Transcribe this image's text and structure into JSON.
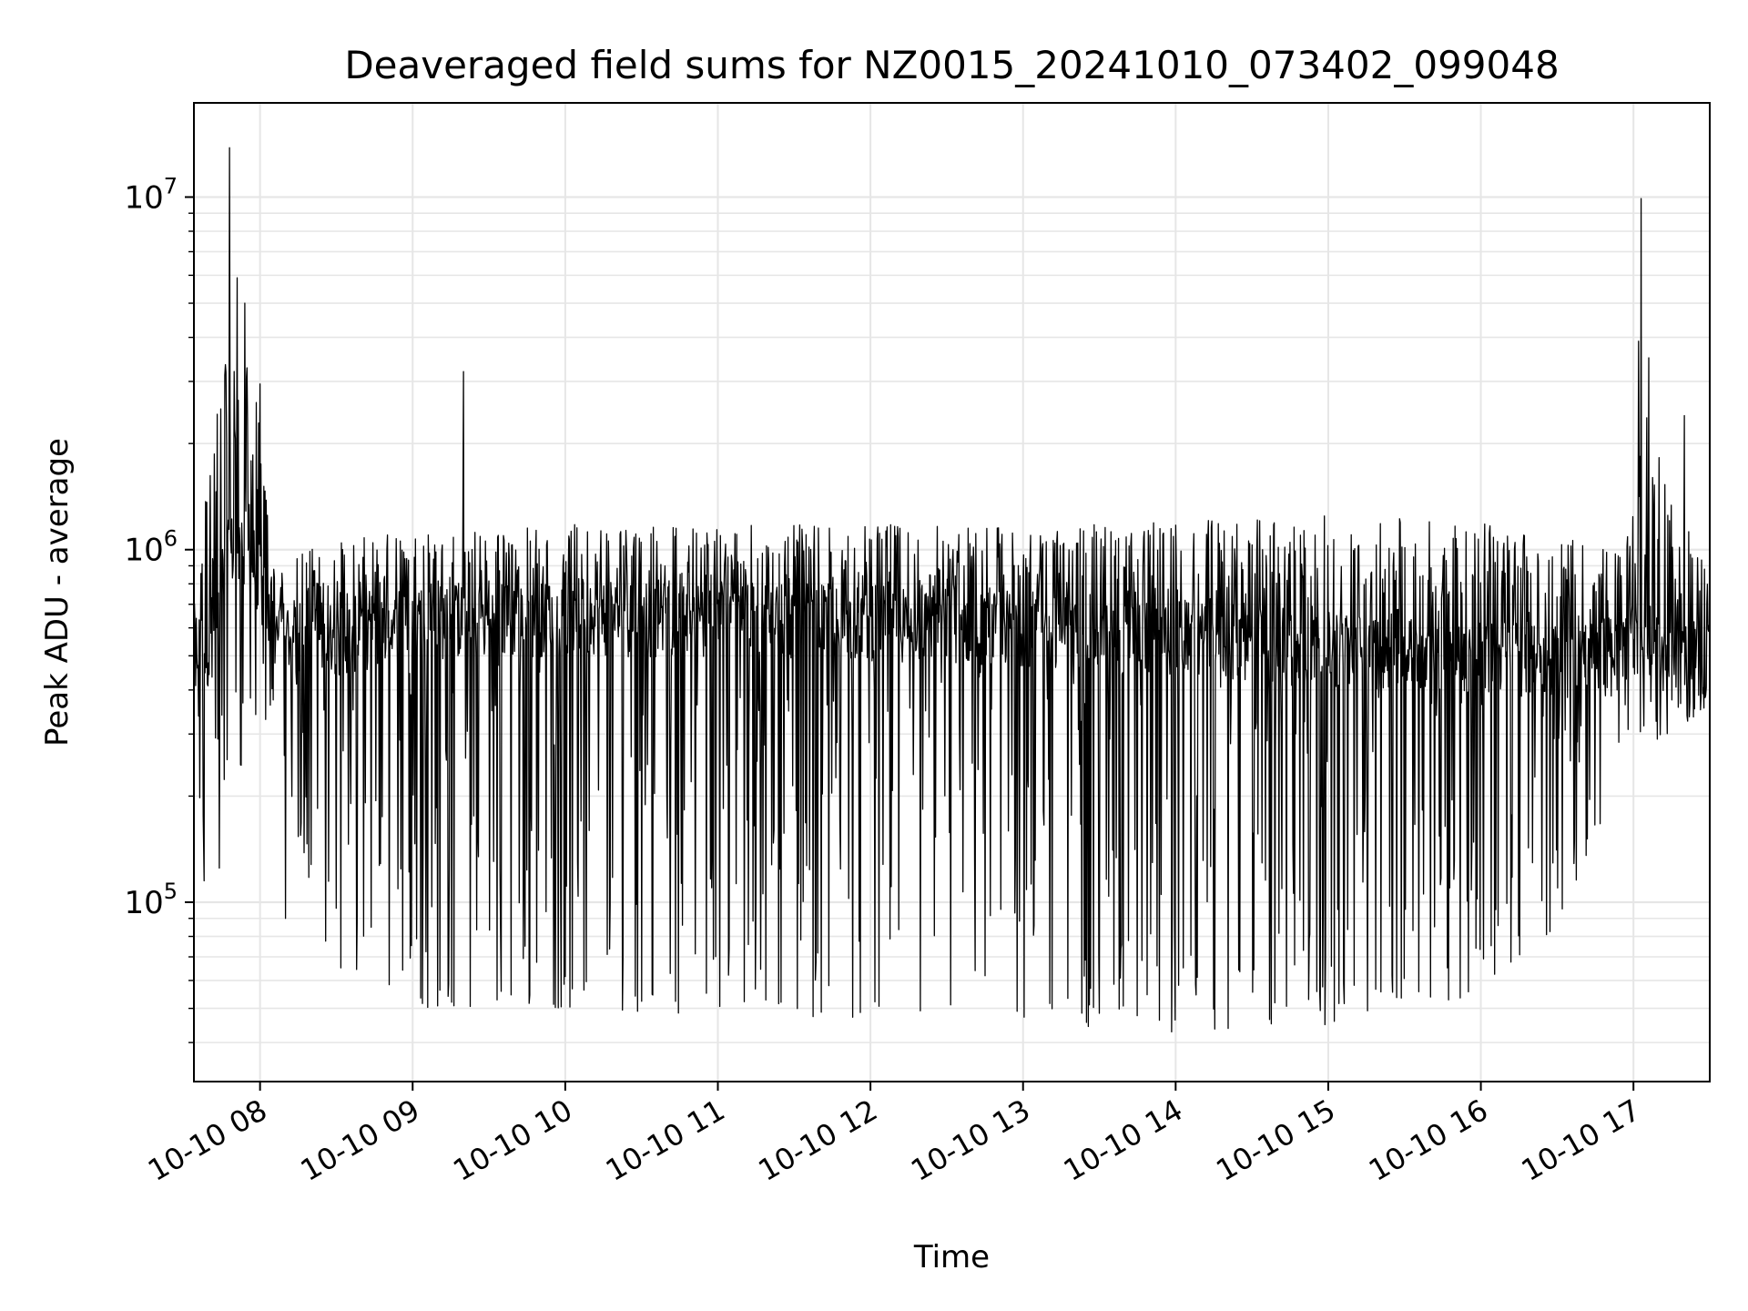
{
  "chart_data": {
    "type": "line",
    "title": "Deaveraged field sums for NZ0015_20241010_073402_099048",
    "xlabel": "Time",
    "ylabel": "Peak ADU - average",
    "yscale": "log",
    "grid": true,
    "grid_minor": true,
    "line_color": "#000000",
    "grid_color": "#e6e6e6",
    "xlim": [
      "2024-10-10 07:34",
      "2024-10-10 17:30"
    ],
    "ylim": [
      31000,
      18500000
    ],
    "xticks": [
      {
        "value": "2024-10-10 08:00",
        "label": "10-10 08"
      },
      {
        "value": "2024-10-10 09:00",
        "label": "10-10 09"
      },
      {
        "value": "2024-10-10 10:00",
        "label": "10-10 10"
      },
      {
        "value": "2024-10-10 11:00",
        "label": "10-10 11"
      },
      {
        "value": "2024-10-10 12:00",
        "label": "10-10 12"
      },
      {
        "value": "2024-10-10 13:00",
        "label": "10-10 13"
      },
      {
        "value": "2024-10-10 14:00",
        "label": "10-10 14"
      },
      {
        "value": "2024-10-10 15:00",
        "label": "10-10 15"
      },
      {
        "value": "2024-10-10 16:00",
        "label": "10-10 16"
      },
      {
        "value": "2024-10-10 17:00",
        "label": "10-10 17"
      }
    ],
    "yticks": [
      {
        "value": 100000,
        "label": "10^5"
      },
      {
        "value": 1000000,
        "label": "10^6"
      },
      {
        "value": 10000000,
        "label": "10^7"
      }
    ],
    "envelope": [
      {
        "t": "2024-10-10 07:34",
        "low": 110000,
        "high": 1250000,
        "base": 550000
      },
      {
        "t": "2024-10-10 07:40",
        "low": 170000,
        "high": 1600000,
        "base": 500000
      },
      {
        "t": "2024-10-10 07:46",
        "low": 190000,
        "high": 3800000,
        "base": 900000
      },
      {
        "t": "2024-10-10 07:52",
        "low": 230000,
        "high": 5000000,
        "base": 1100000
      },
      {
        "t": "2024-10-10 07:58",
        "low": 250000,
        "high": 3000000,
        "base": 900000
      },
      {
        "t": "2024-10-10 08:05",
        "low": 380000,
        "high": 950000,
        "base": 580000
      },
      {
        "t": "2024-10-10 08:15",
        "low": 150000,
        "high": 1000000,
        "base": 560000
      },
      {
        "t": "2024-10-10 08:30",
        "low": 60000,
        "high": 1050000,
        "base": 560000
      },
      {
        "t": "2024-10-10 09:00",
        "low": 50000,
        "high": 1150000,
        "base": 620000
      },
      {
        "t": "2024-10-10 10:00",
        "low": 50000,
        "high": 1180000,
        "base": 640000
      },
      {
        "t": "2024-10-10 11:00",
        "low": 48000,
        "high": 1170000,
        "base": 630000
      },
      {
        "t": "2024-10-10 12:00",
        "low": 47000,
        "high": 1180000,
        "base": 620000
      },
      {
        "t": "2024-10-10 13:00",
        "low": 46000,
        "high": 1170000,
        "base": 600000
      },
      {
        "t": "2024-10-10 14:00",
        "low": 42000,
        "high": 1200000,
        "base": 560000
      },
      {
        "t": "2024-10-10 15:00",
        "low": 45000,
        "high": 1250000,
        "base": 520000
      },
      {
        "t": "2024-10-10 16:00",
        "low": 55000,
        "high": 1200000,
        "base": 500000
      },
      {
        "t": "2024-10-10 16:40",
        "low": 100000,
        "high": 1050000,
        "base": 480000
      },
      {
        "t": "2024-10-10 16:55",
        "low": 300000,
        "high": 1000000,
        "base": 520000
      },
      {
        "t": "2024-10-10 17:05",
        "low": 280000,
        "high": 2400000,
        "base": 600000
      },
      {
        "t": "2024-10-10 17:15",
        "low": 300000,
        "high": 1400000,
        "base": 500000
      },
      {
        "t": "2024-10-10 17:30",
        "low": 350000,
        "high": 900000,
        "base": 480000
      }
    ],
    "spikes": [
      {
        "t": "2024-10-10 07:48",
        "value": 13800000
      },
      {
        "t": "2024-10-10 07:51",
        "value": 5900000
      },
      {
        "t": "2024-10-10 07:54",
        "value": 5000000
      },
      {
        "t": "2024-10-10 08:00",
        "value": 2950000
      },
      {
        "t": "2024-10-10 09:20",
        "value": 3200000
      },
      {
        "t": "2024-10-10 17:02",
        "value": 3900000
      },
      {
        "t": "2024-10-10 17:03",
        "value": 9900000
      },
      {
        "t": "2024-10-10 17:06",
        "value": 3500000
      },
      {
        "t": "2024-10-10 17:20",
        "value": 2400000
      }
    ],
    "dips": [
      {
        "t": "2024-10-10 08:10",
        "value": 90000
      },
      {
        "t": "2024-10-10 07:38",
        "value": 115000
      },
      {
        "t": "2024-10-10 07:44",
        "value": 125000
      }
    ]
  }
}
